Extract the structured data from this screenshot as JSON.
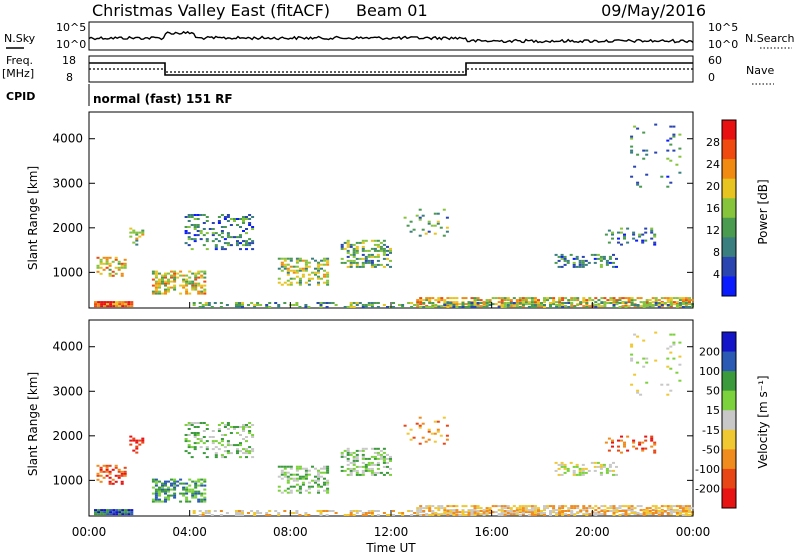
{
  "header": {
    "title": "Christmas Valley East (fitACF)",
    "beam": "Beam 01",
    "date": "09/May/2016"
  },
  "top_panels": {
    "nsky_label": "N.Sky",
    "nsky_ticks": [
      "10^5",
      "10^0"
    ],
    "nsearch_label": "N.Search",
    "freq_label_1": "Freq.",
    "freq_label_2": "[MHz]",
    "freq_ticks": [
      "18",
      "8"
    ],
    "nave_label": "Nave",
    "nave_ticks": [
      "60",
      "0"
    ],
    "cpid_label": "CPID",
    "cpid_value": "normal (fast) 151 RF"
  },
  "chart_data": [
    {
      "type": "heatmap",
      "name": "power",
      "ylabel": "Slant Range [km]",
      "ylim": [
        200,
        4600
      ],
      "yticks": [
        1000,
        2000,
        3000,
        4000
      ],
      "xlim": [
        0,
        24
      ],
      "colorbar_label": "Power [dB]",
      "colorbar_ticks": [
        "4",
        "8",
        "12",
        "16",
        "20",
        "24",
        "28"
      ],
      "colors": [
        "#0a1cff",
        "#2a44b0",
        "#3a7e80",
        "#4a9a50",
        "#86c43c",
        "#e8c420",
        "#f08a10",
        "#f04a10",
        "#e81010"
      ]
    },
    {
      "type": "heatmap",
      "name": "velocity",
      "ylabel": "Slant Range [km]",
      "ylim": [
        200,
        4600
      ],
      "yticks": [
        1000,
        2000,
        3000,
        4000
      ],
      "xlim": [
        0,
        24
      ],
      "xlabel": "Time UT",
      "xticks": [
        "00:00",
        "04:00",
        "08:00",
        "12:00",
        "16:00",
        "20:00",
        "00:00"
      ],
      "colorbar_label": "Velocity [m s⁻¹]",
      "colorbar_ticks": [
        "200",
        "100",
        "50",
        "15",
        "-15",
        "-50",
        "-100",
        "-200"
      ],
      "colors": [
        "#1414c8",
        "#2a5ab4",
        "#3a9a3c",
        "#7cd23c",
        "#c8c8c8",
        "#f0c832",
        "#f08c1e",
        "#e84614",
        "#e81414"
      ]
    }
  ]
}
